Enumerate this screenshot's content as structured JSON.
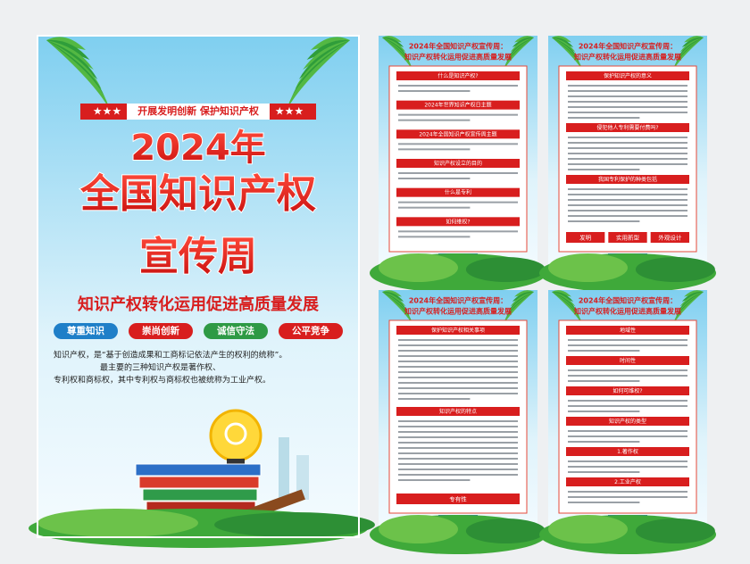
{
  "main": {
    "tagline": "开展发明创新 保护知识产权",
    "title": [
      "2024年",
      "全国知识产权",
      "宣传周"
    ],
    "subtitle": "知识产权转化运用促进高质量发展",
    "tags": [
      "尊重知识",
      "崇尚创新",
      "诚信守法",
      "公平竞争"
    ],
    "body": [
      "知识产权，是“基于创造成果和工商标记依法产生的权利的统称”。",
      "最主要的三种知识产权是著作权、",
      "专利权和商标权，其中专利权与商标权也被统称为工业产权。"
    ]
  },
  "panel_header": [
    "2024年全国知识产权宣传周：",
    "知识产权转化运用促进高质量发展"
  ],
  "panels": [
    {
      "sections": [
        "什么是知识产权?",
        "2024年世界知识产权日主题",
        "2024年全国知识产权宣传周主题",
        "知识产权设立的目的",
        "什么是专利",
        "如何维权?"
      ]
    },
    {
      "sections": [
        "保护知识产权的意义",
        "侵犯他人专利需要付费吗?",
        "我国专利保护的种类包括"
      ],
      "tags": [
        "发明",
        "实用新型",
        "外观设计"
      ]
    },
    {
      "sections": [
        "保护知识产权相关事项",
        "知识产权的特点"
      ],
      "tags": [
        "专有性"
      ]
    },
    {
      "sections": [
        "地域性",
        "时间性",
        "如何可维权?",
        "知识产权的类型",
        "1.著作权",
        "2.工业产权"
      ]
    }
  ]
}
